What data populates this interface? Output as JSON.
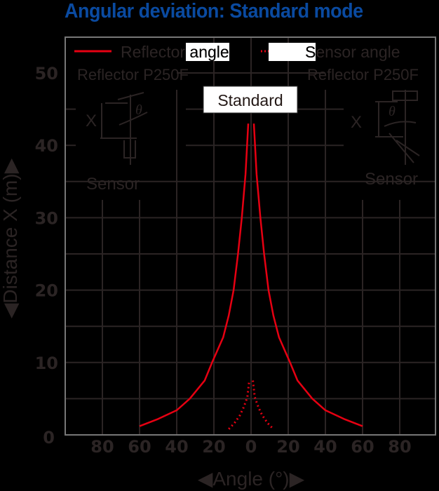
{
  "title": "Angular deviation: Standard mode",
  "colors": {
    "title": "#0a4aa0",
    "curve": "#e60012",
    "grid": "#2b2424",
    "frame": "#777777",
    "background": "#000000"
  },
  "legend": [
    {
      "label": "Reflector angle",
      "style": "solid"
    },
    {
      "label": "Sensor angle",
      "style": "dotted"
    }
  ],
  "annotations": {
    "mode_box": "Standard",
    "left_reflector": "Reflector P250F",
    "right_reflector": "Reflector P250F",
    "left_sensor": "Sensor",
    "right_sensor": "Sensor",
    "x_symbol": "X",
    "theta_symbol": "θ"
  },
  "axes": {
    "ylabel": "◀Distance X (m)▶",
    "xlabel": "◀Angle (°)▶",
    "yticks": [
      "0",
      "10",
      "20",
      "30",
      "40",
      "50"
    ],
    "xticks": [
      "80",
      "60",
      "40",
      "20",
      "0",
      "20",
      "40",
      "60",
      "80"
    ]
  },
  "chart_data": {
    "type": "line",
    "title": "Angular deviation: Standard mode",
    "xlabel": "Angle (°)",
    "ylabel": "Distance X (m)",
    "xlim": [
      -100,
      100
    ],
    "ylim": [
      0,
      55
    ],
    "grid": true,
    "legend_position": "top",
    "series": [
      {
        "name": "Reflector angle",
        "style": "solid",
        "x": [
          -60,
          -50,
          -40,
          -33,
          -25,
          -21,
          -15,
          -12,
          -9.4,
          -7,
          -5,
          -3,
          -1.5,
          1.5,
          3,
          5,
          7,
          9.4,
          12,
          15,
          21,
          25,
          33,
          40,
          50,
          60
        ],
        "y": [
          1.2,
          2.2,
          3.4,
          5,
          7.5,
          10,
          13.5,
          16.5,
          20,
          25,
          30,
          36,
          43,
          43,
          36,
          30,
          25,
          20,
          16.5,
          13.5,
          10,
          7.5,
          5,
          3.4,
          2.2,
          1.2
        ]
      },
      {
        "name": "Sensor angle",
        "style": "dotted",
        "x": [
          -12,
          -9,
          -6,
          -4,
          -2,
          -1,
          1,
          2,
          4,
          6,
          9,
          12
        ],
        "y": [
          0.8,
          1.6,
          2.7,
          3.8,
          5.2,
          7.5,
          7.5,
          5.2,
          3.8,
          2.7,
          1.6,
          0.8
        ]
      }
    ]
  }
}
